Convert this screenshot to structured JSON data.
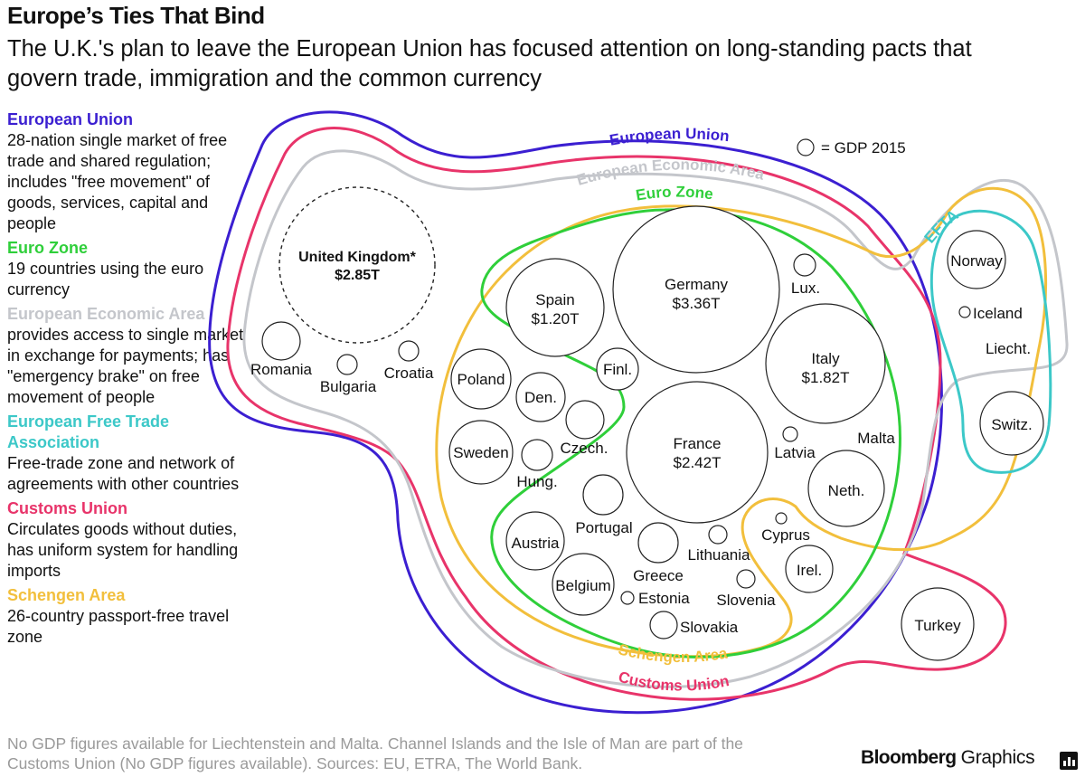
{
  "title": "Europe’s Ties That Bind",
  "subtitle": "The U.K.'s plan to leave the European Union has focused attention on long-standing pacts that govern trade, immigration and the common currency",
  "colors": {
    "eu": "#3b1fd1",
    "euro": "#2fcf3a",
    "eea": "#c4c6cb",
    "efta": "#3cc8c8",
    "customs": "#e8346a",
    "schengen": "#f2bf3c",
    "circle": "#222222"
  },
  "legend": {
    "eu": {
      "head": "European Union",
      "desc": "28-nation single market of free trade and shared regulation; includes \"free movement\" of goods, services, capital and people"
    },
    "euro": {
      "head": "Euro Zone",
      "desc": "19 countries using the euro currency"
    },
    "eea": {
      "head": "European Economic Area",
      "desc": "provides access to single market in exchange for payments; has \"emergency brake\" on free movement of people"
    },
    "efta": {
      "head": "European Free Trade Association",
      "desc": "Free-trade zone and network of agreements with other countries"
    },
    "customs": {
      "head": "Customs Union",
      "desc": "Circulates goods without duties, has uniform system for handling imports"
    },
    "schengen": {
      "head": "Schengen Area",
      "desc": "26-country passport-free travel zone"
    }
  },
  "ring_labels": {
    "eu": "European Union",
    "eea": "European Economic Area",
    "euro": "Euro Zone",
    "efta": "EFTA",
    "schengen": "Schengen Area",
    "customs": "Customs Union"
  },
  "gdp_key": "= GDP 2015",
  "countries": {
    "uk": {
      "name": "United Kingdom*",
      "gdp": "$2.85T"
    },
    "germany": {
      "name": "Germany",
      "gdp": "$3.36T"
    },
    "france": {
      "name": "France",
      "gdp": "$2.42T"
    },
    "italy": {
      "name": "Italy",
      "gdp": "$1.82T"
    },
    "spain": {
      "name": "Spain",
      "gdp": "$1.20T"
    },
    "romania": "Romania",
    "bulgaria": "Bulgaria",
    "croatia": "Croatia",
    "poland": "Poland",
    "finland": "Finl.",
    "denmark": "Den.",
    "sweden": "Sweden",
    "czech": "Czech.",
    "hungary": "Hung.",
    "austria": "Austria",
    "portugal": "Portugal",
    "belgium": "Belgium",
    "greece": "Greece",
    "lithuania": "Lithuania",
    "estonia": "Estonia",
    "slovenia": "Slovenia",
    "slovakia": "Slovakia",
    "luxembourg": "Lux.",
    "latvia": "Latvia",
    "malta": "Malta",
    "netherlands": "Neth.",
    "cyprus": "Cyprus",
    "ireland": "Irel.",
    "norway": "Norway",
    "iceland": "Iceland",
    "liechtenstein": "Liecht.",
    "switzerland": "Switz.",
    "turkey": "Turkey"
  },
  "footnote": "No GDP figures available for Liechtenstein and Malta. Channel Islands and the Isle of Man are part of the Customs Union (No GDP figures available). Sources: EU, ETRA, The World Bank.",
  "brand": {
    "bold": "Bloomberg",
    "light": "Graphics"
  }
}
